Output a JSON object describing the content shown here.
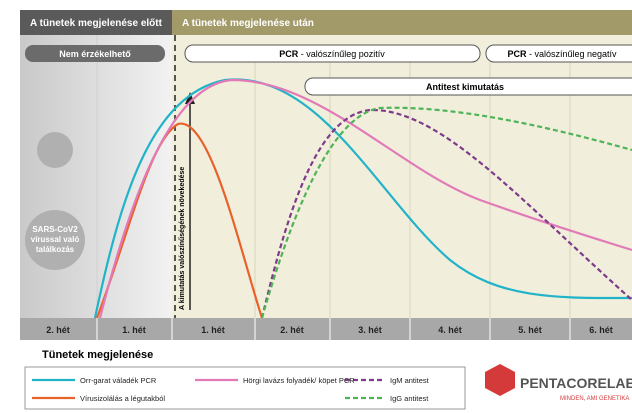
{
  "header": {
    "before": "A tünetek megjelenése előtt",
    "after": "A tünetek megjelenése után"
  },
  "pills": {
    "undetectable": "Nem érzékelhető",
    "pcr_pos_bold": "PCR",
    "pcr_pos": "- valószínűleg pozitív",
    "pcr_neg_bold": "PCR",
    "pcr_neg": "- valószínűleg negatív",
    "antibody": "Antitest kimutatás"
  },
  "virus_label": [
    "SARS-CoV2",
    "vírussal való",
    "találkozás"
  ],
  "arrow_label": "A kimutatás valószínűségének növekedése",
  "weeks": [
    "2. hét",
    "1. hét",
    "1. hét",
    "2. hét",
    "3. hét",
    "4. hét",
    "5. hét",
    "6. hét"
  ],
  "symptom_onset": "Tünetek megjelenése",
  "legend": [
    "Orr-garat váladék PCR",
    "Vírusizolálás a légutakból",
    "Hörgi lavázs folyadék/ köpet PCR",
    "IgM antitest",
    "IgG antitest"
  ],
  "logo": {
    "name": "PENTACORELAB",
    "tagline": "MINDEN, AMI GENETIKA"
  }
}
